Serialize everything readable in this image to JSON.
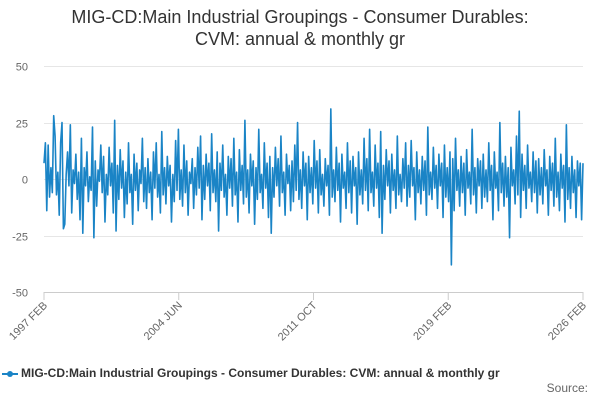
{
  "title_lines": [
    "MIG-CD:Main Industrial Groupings - Consumer Durables:",
    "CVM: annual & monthly gr"
  ],
  "source_label": "Source:",
  "colors": {
    "series": "#1a84c6",
    "grid": "#e6e6e6",
    "axis_text": "#666666"
  },
  "chart_data": {
    "type": "line",
    "title": "MIG-CD:Main Industrial Groupings - Consumer Durables: CVM: annual & monthly gr",
    "xlabel": "",
    "ylabel": "",
    "ylim": [
      -50,
      50
    ],
    "y_ticks": [
      50,
      25,
      0,
      -25,
      -50
    ],
    "x_ticks": [
      "1997 FEB",
      "2004 JUN",
      "2011 OCT",
      "2019 FEB",
      "2026 FEB"
    ],
    "x_range_start": "1997 FEB",
    "x_range_end": "2026 FEB",
    "legend": "bottom",
    "series": [
      {
        "name": "MIG-CD:Main Industrial Groupings - Consumer Durables: CVM: annual & monthly gr",
        "values": [
          7,
          16,
          -14,
          15,
          -8,
          5,
          -6,
          28,
          19,
          -7,
          3,
          -16,
          16,
          25,
          -22,
          -20,
          2,
          12,
          -3,
          24,
          -15,
          4,
          -2,
          11,
          -9,
          3,
          -18,
          18,
          -24,
          5,
          -3,
          12,
          -10,
          1,
          -5,
          23,
          -26,
          8,
          -12,
          4,
          -1,
          15,
          -6,
          10,
          -19,
          2,
          -7,
          14,
          -3,
          7,
          -15,
          26,
          -23,
          6,
          -9,
          13,
          -4,
          8,
          -17,
          3,
          -11,
          16,
          -6,
          2,
          -20,
          11,
          -5,
          7,
          -14,
          4,
          -2,
          18,
          -10,
          5,
          -13,
          9,
          -6,
          3,
          -18,
          12,
          -4,
          16,
          -8,
          2,
          -15,
          21,
          -7,
          5,
          -11,
          10,
          -3,
          6,
          -19,
          2,
          -10,
          17,
          -5,
          22,
          -9,
          4,
          -12,
          15,
          -6,
          8,
          -16,
          3,
          -2,
          9,
          -13,
          5,
          -7,
          14,
          -4,
          19,
          -18,
          6,
          -9,
          11,
          -3,
          7,
          -14,
          20,
          -6,
          4,
          -10,
          12,
          -23,
          7,
          -5,
          15,
          -8,
          2,
          -16,
          10,
          -4,
          9,
          -12,
          18,
          -7,
          3,
          -19,
          13,
          -5,
          6,
          -11,
          26,
          -8,
          4,
          -15,
          11,
          -3,
          8,
          -20,
          5,
          -9,
          22,
          -6,
          2,
          -13,
          16,
          -4,
          7,
          -17,
          10,
          -24,
          5,
          -8,
          14,
          -3,
          9,
          -12,
          19,
          -6,
          3,
          -16,
          11,
          -2,
          6,
          -14,
          8,
          -10,
          15,
          -5,
          25,
          -9,
          4,
          -13,
          12,
          -3,
          7,
          -18,
          10,
          -6,
          5,
          -11,
          17,
          -4,
          8,
          -15,
          13,
          -7,
          2,
          -12,
          9,
          -3,
          6,
          -16,
          31,
          -8,
          4,
          -10,
          14,
          -5,
          7,
          -19,
          11,
          -4,
          3,
          -13,
          16,
          -6,
          8,
          -15,
          10,
          -3,
          5,
          -20,
          12,
          -7,
          4,
          -11,
          18,
          -5,
          9,
          -14,
          22,
          -6,
          3,
          -12,
          15,
          -4,
          7,
          -17,
          21,
          -24,
          6,
          -9,
          13,
          -3,
          8,
          -15,
          11,
          -5,
          4,
          -13,
          19,
          -7,
          2,
          -10,
          9,
          -4,
          16,
          -12,
          6,
          -8,
          17,
          -3,
          5,
          -18,
          12,
          -6,
          4,
          -11,
          10,
          -5,
          8,
          -16,
          23,
          -7,
          3,
          -9,
          14,
          -4,
          6,
          -13,
          11,
          -3,
          7,
          -17,
          15,
          -8,
          5,
          -10,
          12,
          -38,
          9,
          -14,
          18,
          -5,
          4,
          -12,
          10,
          -6,
          7,
          -16,
          13,
          -4,
          3,
          -11,
          22,
          -7,
          5,
          -15,
          9,
          -3,
          8,
          -13,
          11,
          -8,
          4,
          -10,
          16,
          -5,
          6,
          -18,
          12,
          -4,
          3,
          -14,
          25,
          -6,
          7,
          -12,
          10,
          -8,
          5,
          -26,
          14,
          -3,
          4,
          -11,
          19,
          -7,
          30,
          -17,
          11,
          -5,
          6,
          -13,
          15,
          -4,
          3,
          -10,
          12,
          -6,
          8,
          -15,
          9,
          -7,
          5,
          -11,
          13,
          -3,
          4,
          -16,
          10,
          -5,
          7,
          -12,
          18,
          -8,
          3,
          -14,
          11,
          -4,
          6,
          -19,
          24,
          -9,
          5,
          -13,
          10,
          -6,
          4,
          -17,
          8,
          -3,
          7,
          -18,
          7
        ]
      }
    ]
  }
}
